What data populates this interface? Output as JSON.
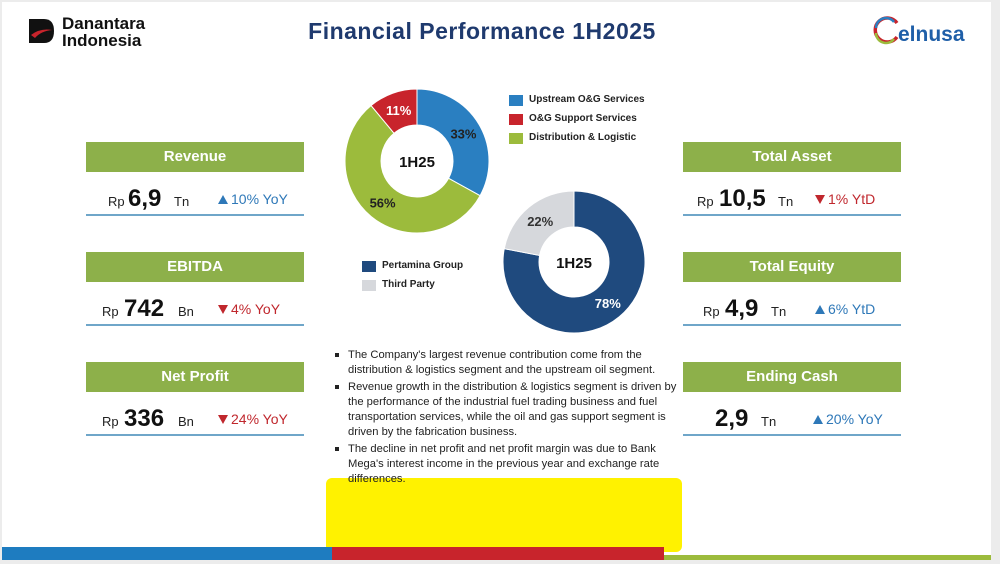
{
  "header": {
    "left_logo_line1": "Danantara",
    "left_logo_line2": "Indonesia",
    "title": "Financial Performance 1H2025",
    "right_logo": "elnusa"
  },
  "kpis_left": [
    {
      "label": "Revenue",
      "currency": "Rp",
      "value": "6,9",
      "unit": "Tn",
      "change": "10% YoY",
      "direction": "up"
    },
    {
      "label": "EBITDA",
      "currency": "Rp",
      "value": "742",
      "unit": "Bn",
      "change": "4% YoY",
      "direction": "down"
    },
    {
      "label": "Net Profit",
      "currency": "Rp",
      "value": "336",
      "unit": "Bn",
      "change": "24% YoY",
      "direction": "down"
    }
  ],
  "kpis_right": [
    {
      "label": "Total Asset",
      "currency": "Rp",
      "value": "10,5",
      "unit": "Tn",
      "change": "1% YtD",
      "direction": "down"
    },
    {
      "label": "Total Equity",
      "currency": "Rp",
      "value": "4,9",
      "unit": "Tn",
      "change": "6% YtD",
      "direction": "up"
    },
    {
      "label": "Ending Cash",
      "currency": "",
      "value": "2,9",
      "unit": "Tn",
      "change": "20% YoY",
      "direction": "up"
    }
  ],
  "chart_data": [
    {
      "type": "pie",
      "center_label": "1H25",
      "slices": [
        {
          "name": "Upstream O&G Services",
          "value": 33,
          "label": "33%",
          "color": "#2a7fc1"
        },
        {
          "name": "Distribution & Logistic",
          "value": 56,
          "label": "56%",
          "color": "#9cbb3c"
        },
        {
          "name": "O&G Support Services",
          "value": 11,
          "label": "11%",
          "color": "#c8242c"
        }
      ],
      "legend": [
        "Upstream O&G Services",
        "O&G Support Services",
        "Distribution & Logistic"
      ],
      "legend_position": "right"
    },
    {
      "type": "pie",
      "center_label": "1H25",
      "slices": [
        {
          "name": "Pertamina Group",
          "value": 78,
          "label": "78%",
          "color": "#1f4a7e"
        },
        {
          "name": "Third Party",
          "value": 22,
          "label": "22%",
          "color": "#d6d8dc"
        }
      ],
      "legend": [
        "Pertamina Group",
        "Third Party"
      ],
      "legend_position": "left"
    }
  ],
  "bullets": [
    "The Company's largest revenue contribution come from the distribution & logistics segment and the upstream oil segment.",
    "Revenue growth in the distribution & logistics segment is driven by the performance of the industrial fuel trading business and fuel transportation services, while the oil and gas support segment is driven by the fabrication business.",
    "The decline in net profit and net profit margin was due to Bank Mega's interest income in the previous year and exchange rate differences."
  ],
  "colors": {
    "kpi_bar": "#8db04a",
    "title": "#1f3a6e",
    "up": "#2e78b8",
    "down": "#c0272d",
    "highlight": "#fff200",
    "footer_blue": "#1e7cc0",
    "footer_red": "#c8242c",
    "footer_green": "#9cbb3c"
  }
}
